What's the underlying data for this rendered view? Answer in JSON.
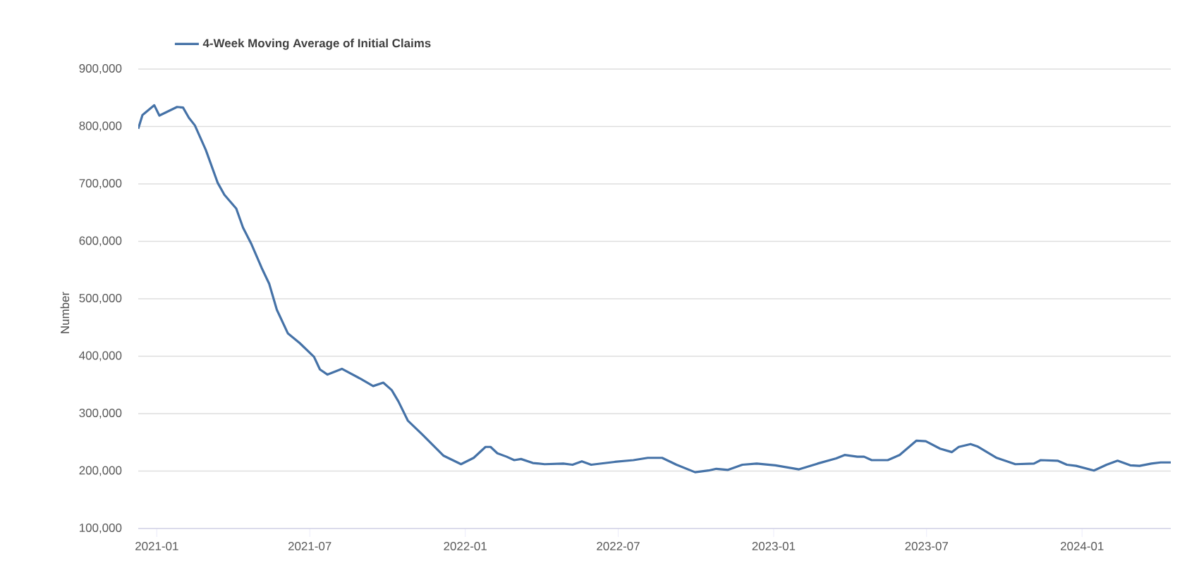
{
  "chart_data": {
    "type": "line",
    "ylabel": "Number",
    "legend": "top left",
    "grid": "y",
    "line_style": "solid",
    "marker": "none",
    "xlim": [
      "2020-12-10",
      "2024-04-15"
    ],
    "ylim": [
      100000,
      900000
    ],
    "xticks": [
      {
        "value": "2021-01-01",
        "label": "2021-01"
      },
      {
        "value": "2021-07-01",
        "label": "2021-07"
      },
      {
        "value": "2022-01-01",
        "label": "2022-01"
      },
      {
        "value": "2022-07-01",
        "label": "2022-07"
      },
      {
        "value": "2023-01-01",
        "label": "2023-01"
      },
      {
        "value": "2023-07-01",
        "label": "2023-07"
      },
      {
        "value": "2024-01-01",
        "label": "2024-01"
      }
    ],
    "yticks": [
      {
        "value": 100000,
        "label": "100,000"
      },
      {
        "value": 200000,
        "label": "200,000"
      },
      {
        "value": 300000,
        "label": "300,000"
      },
      {
        "value": 400000,
        "label": "400,000"
      },
      {
        "value": 500000,
        "label": "500,000"
      },
      {
        "value": 600000,
        "label": "600,000"
      },
      {
        "value": 700000,
        "label": "700,000"
      },
      {
        "value": 800000,
        "label": "800,000"
      },
      {
        "value": 900000,
        "label": "900,000"
      }
    ],
    "x": [
      "2020-12-10",
      "2020-12-15",
      "2020-12-29",
      "2021-01-04",
      "2021-01-25",
      "2021-02-01",
      "2021-02-08",
      "2021-02-15",
      "2021-02-28",
      "2021-03-14",
      "2021-03-22",
      "2021-04-05",
      "2021-04-13",
      "2021-04-23",
      "2021-05-05",
      "2021-05-14",
      "2021-05-23",
      "2021-06-05",
      "2021-06-19",
      "2021-07-06",
      "2021-07-13",
      "2021-07-22",
      "2021-08-08",
      "2021-08-31",
      "2021-09-14",
      "2021-09-26",
      "2021-10-06",
      "2021-10-14",
      "2021-10-25",
      "2021-11-11",
      "2021-12-06",
      "2021-12-27",
      "2022-01-11",
      "2022-01-25",
      "2022-01-31",
      "2022-02-08",
      "2022-02-19",
      "2022-02-28",
      "2022-03-08",
      "2022-03-22",
      "2022-04-05",
      "2022-04-27",
      "2022-05-08",
      "2022-05-19",
      "2022-05-30",
      "2022-06-27",
      "2022-07-19",
      "2022-08-05",
      "2022-08-22",
      "2022-09-08",
      "2022-09-30",
      "2022-10-16",
      "2022-10-25",
      "2022-11-08",
      "2022-11-25",
      "2022-12-12",
      "2023-01-03",
      "2023-01-31",
      "2023-02-22",
      "2023-03-16",
      "2023-03-26",
      "2023-04-10",
      "2023-04-18",
      "2023-04-27",
      "2023-05-16",
      "2023-05-30",
      "2023-06-19",
      "2023-06-30",
      "2023-07-17",
      "2023-07-31",
      "2023-08-08",
      "2023-08-22",
      "2023-08-30",
      "2023-09-22",
      "2023-10-14",
      "2023-11-05",
      "2023-11-13",
      "2023-12-03",
      "2023-12-14",
      "2023-12-25",
      "2024-01-15",
      "2024-01-30",
      "2024-02-12",
      "2024-02-27",
      "2024-03-09",
      "2024-03-23",
      "2024-04-03",
      "2024-04-15"
    ],
    "series": [
      {
        "name": "4-Week Moving Average of Initial Claims",
        "color": "#4572a7",
        "values": [
          796000,
          820000,
          837000,
          819000,
          834000,
          833000,
          815000,
          802000,
          759000,
          702000,
          681000,
          657000,
          624000,
          595000,
          554000,
          526000,
          481000,
          440000,
          423000,
          399000,
          377000,
          368000,
          378000,
          360000,
          348000,
          354000,
          341000,
          321000,
          288000,
          264000,
          227000,
          212000,
          223000,
          242000,
          242000,
          231000,
          225000,
          219000,
          221000,
          214000,
          212000,
          213000,
          211000,
          217000,
          211000,
          216000,
          219000,
          223000,
          223000,
          211000,
          198000,
          201000,
          204000,
          202000,
          211000,
          213000,
          210000,
          203000,
          213000,
          222000,
          228000,
          225000,
          225000,
          219000,
          219000,
          228000,
          253000,
          252000,
          239000,
          233000,
          242000,
          247000,
          243000,
          223000,
          212000,
          213000,
          219000,
          218000,
          211000,
          209000,
          201000,
          211000,
          218000,
          210000,
          209000,
          213000,
          215000,
          215000
        ]
      }
    ]
  }
}
